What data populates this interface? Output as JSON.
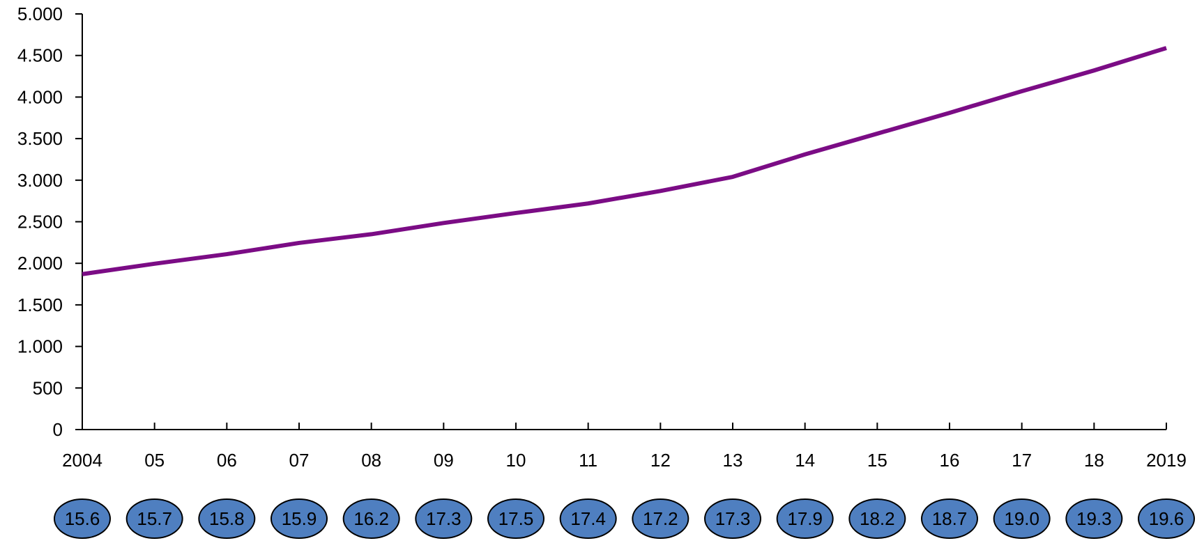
{
  "chart_data": {
    "type": "line",
    "title": "",
    "xlabel": "",
    "ylabel": "",
    "categories": [
      "2004",
      "05",
      "06",
      "07",
      "08",
      "09",
      "10",
      "11",
      "12",
      "13",
      "14",
      "15",
      "16",
      "17",
      "18",
      "2019"
    ],
    "series": [
      {
        "values": [
          1870,
          1995,
          2110,
          2245,
          2350,
          2485,
          2605,
          2720,
          2870,
          3040,
          3310,
          3560,
          3810,
          4070,
          4320,
          4590
        ],
        "color": "#7b0c85"
      }
    ],
    "ylim": [
      0,
      5000
    ],
    "yticks": [
      0,
      500,
      1000,
      1500,
      2000,
      2500,
      3000,
      3500,
      4000,
      4500,
      5000
    ],
    "ytick_labels": [
      "0",
      "500",
      "1.000",
      "1.500",
      "2.000",
      "2.500",
      "3.000",
      "3.500",
      "4.000",
      "4.500",
      "5.000"
    ],
    "annotations": [
      "15.6",
      "15.7",
      "15.8",
      "15.9",
      "16.2",
      "17.3",
      "17.5",
      "17.4",
      "17.2",
      "17.3",
      "17.9",
      "18.2",
      "18.7",
      "19.0",
      "19.3",
      "19.6"
    ],
    "annotation_color": "#4f7fc0",
    "grid": false,
    "legend": "none"
  }
}
